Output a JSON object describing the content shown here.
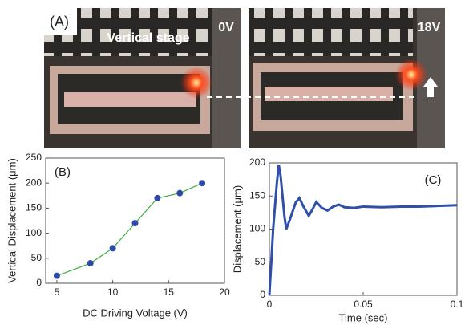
{
  "figure": {
    "panel_label": "(A)",
    "stage_label": "Vertical stage",
    "left_voltage": "0V",
    "right_voltage": "18V"
  },
  "chart_data": [
    {
      "type": "line",
      "panel_label": "(B)",
      "xlabel": "DC Driving Voltage (V)",
      "ylabel": "Vertical Displacement (μm)",
      "x": [
        5,
        8,
        10,
        12,
        14,
        16,
        18
      ],
      "series": [
        {
          "color": "#3cae3c",
          "marker_color": "#2f4aa6",
          "values": [
            15,
            40,
            70,
            120,
            170,
            180,
            200
          ]
        }
      ],
      "markers": true,
      "xlim": [
        4,
        20
      ],
      "xticks": [
        5,
        10,
        15,
        20
      ],
      "ylim": [
        0,
        250
      ],
      "yticks": [
        0,
        50,
        100,
        150,
        200,
        250
      ]
    },
    {
      "type": "line",
      "panel_label": "(C)",
      "xlabel": "Time (sec)",
      "ylabel": "Displacement (μm)",
      "x": [
        0,
        0.002,
        0.004,
        0.005,
        0.006,
        0.008,
        0.009,
        0.011,
        0.014,
        0.016,
        0.018,
        0.021,
        0.023,
        0.025,
        0.028,
        0.031,
        0.034,
        0.037,
        0.04,
        0.045,
        0.05,
        0.06,
        0.07,
        0.08,
        0.09,
        0.1
      ],
      "series": [
        {
          "color": "#3050a8",
          "values": [
            0,
            100,
            170,
            197,
            180,
            120,
            100,
            115,
            140,
            147,
            135,
            120,
            130,
            141,
            132,
            128,
            134,
            137,
            133,
            132,
            134,
            133,
            134,
            134,
            135,
            136
          ]
        }
      ],
      "markers": false,
      "xlim": [
        0,
        0.1
      ],
      "xticks": [
        0,
        0.05,
        0.1
      ],
      "ylim": [
        0,
        200
      ],
      "yticks": [
        0,
        50,
        100,
        150,
        200
      ]
    }
  ]
}
